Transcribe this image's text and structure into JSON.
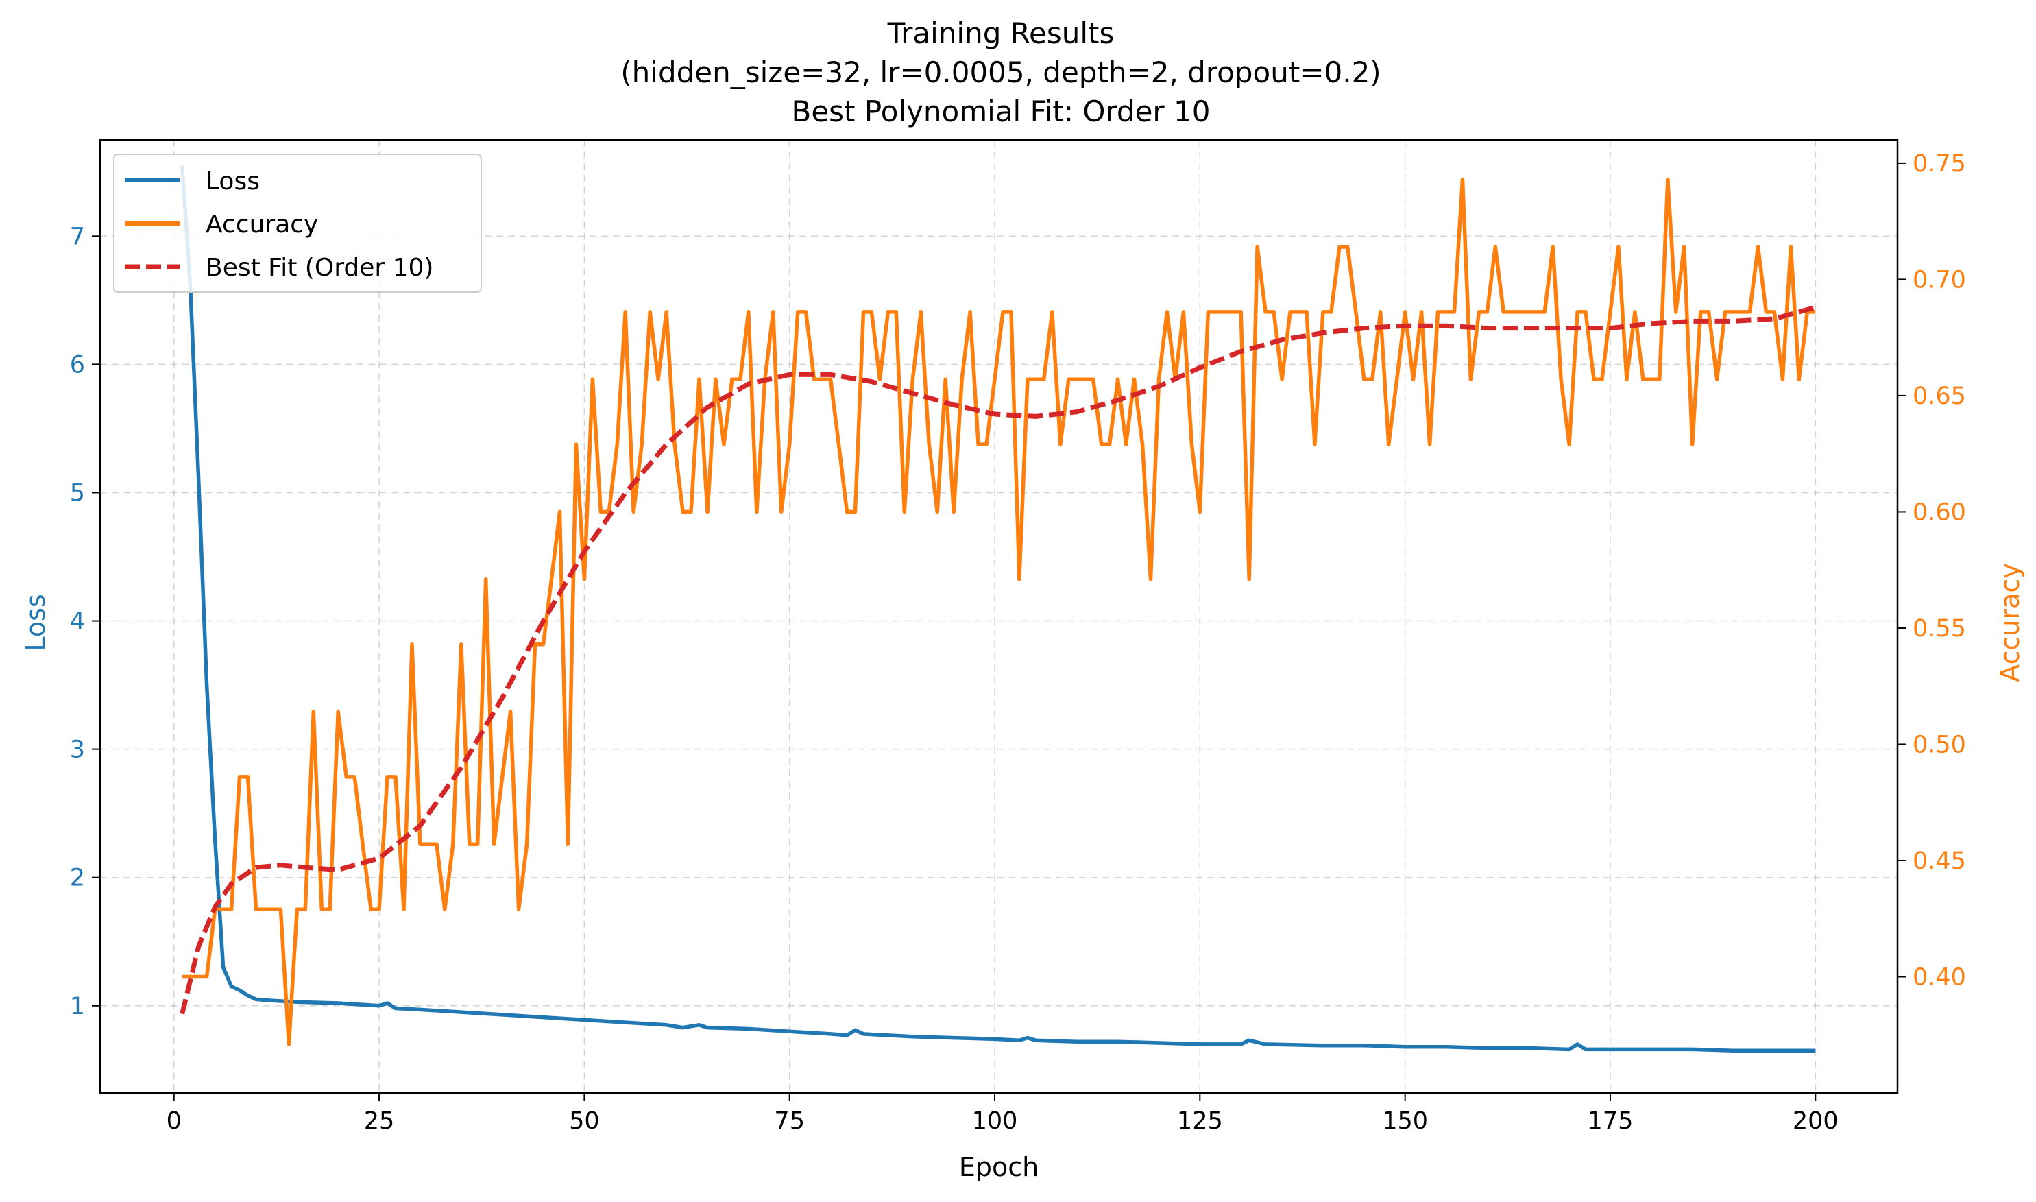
{
  "chart_data": {
    "type": "line",
    "title_lines": [
      "Training Results",
      "(hidden_size=32, lr=0.0005, depth=2, dropout=0.2)",
      "Best Polynomial Fit: Order 10"
    ],
    "xlabel": "Epoch",
    "ylabel_left": "Loss",
    "ylabel_right": "Accuracy",
    "xlim": [
      -9,
      210
    ],
    "ylim_left": [
      0.32,
      7.75
    ],
    "ylim_right": [
      0.35,
      0.76
    ],
    "xticks": [
      0,
      25,
      50,
      75,
      100,
      125,
      150,
      175,
      200
    ],
    "xtick_labels": [
      "0",
      "25",
      "50",
      "75",
      "100",
      "125",
      "150",
      "175",
      "200"
    ],
    "yticks_left": [
      1,
      2,
      3,
      4,
      5,
      6,
      7
    ],
    "ytick_labels_left": [
      "1",
      "2",
      "3",
      "4",
      "5",
      "6",
      "7"
    ],
    "yticks_right": [
      0.4,
      0.45,
      0.5,
      0.55,
      0.6,
      0.65,
      0.7,
      0.75
    ],
    "ytick_labels_right": [
      "0.40",
      "0.45",
      "0.50",
      "0.55",
      "0.60",
      "0.65",
      "0.70",
      "0.75"
    ],
    "grid": true,
    "legend_position": "upper-left",
    "colors": {
      "loss": "#1f77b4",
      "accuracy": "#ff7f0e",
      "fit": "#d62728"
    },
    "series": [
      {
        "name": "Loss",
        "axis": "left",
        "style": "solid",
        "points": [
          [
            1,
            7.55
          ],
          [
            2,
            6.6
          ],
          [
            3,
            5.1
          ],
          [
            4,
            3.5
          ],
          [
            5,
            2.3
          ],
          [
            6,
            1.3
          ],
          [
            7,
            1.15
          ],
          [
            8,
            1.12
          ],
          [
            9,
            1.08
          ],
          [
            10,
            1.05
          ],
          [
            12,
            1.04
          ],
          [
            15,
            1.03
          ],
          [
            20,
            1.02
          ],
          [
            25,
            1.0
          ],
          [
            26,
            1.02
          ],
          [
            27,
            0.98
          ],
          [
            30,
            0.97
          ],
          [
            35,
            0.95
          ],
          [
            40,
            0.93
          ],
          [
            45,
            0.91
          ],
          [
            50,
            0.89
          ],
          [
            55,
            0.87
          ],
          [
            60,
            0.85
          ],
          [
            62,
            0.83
          ],
          [
            64,
            0.85
          ],
          [
            65,
            0.83
          ],
          [
            70,
            0.82
          ],
          [
            75,
            0.8
          ],
          [
            80,
            0.78
          ],
          [
            82,
            0.77
          ],
          [
            83,
            0.81
          ],
          [
            84,
            0.78
          ],
          [
            90,
            0.76
          ],
          [
            95,
            0.75
          ],
          [
            100,
            0.74
          ],
          [
            103,
            0.73
          ],
          [
            104,
            0.75
          ],
          [
            105,
            0.73
          ],
          [
            110,
            0.72
          ],
          [
            115,
            0.72
          ],
          [
            120,
            0.71
          ],
          [
            125,
            0.7
          ],
          [
            130,
            0.7
          ],
          [
            131,
            0.73
          ],
          [
            133,
            0.7
          ],
          [
            140,
            0.69
          ],
          [
            145,
            0.69
          ],
          [
            150,
            0.68
          ],
          [
            155,
            0.68
          ],
          [
            160,
            0.67
          ],
          [
            165,
            0.67
          ],
          [
            170,
            0.66
          ],
          [
            171,
            0.7
          ],
          [
            172,
            0.66
          ],
          [
            175,
            0.66
          ],
          [
            180,
            0.66
          ],
          [
            185,
            0.66
          ],
          [
            190,
            0.65
          ],
          [
            195,
            0.65
          ],
          [
            200,
            0.65
          ]
        ]
      },
      {
        "name": "Accuracy",
        "axis": "right",
        "style": "solid",
        "points": [
          [
            1,
            0.4
          ],
          [
            2,
            0.4
          ],
          [
            3,
            0.4
          ],
          [
            4,
            0.4
          ],
          [
            5,
            0.429
          ],
          [
            6,
            0.429
          ],
          [
            7,
            0.429
          ],
          [
            8,
            0.486
          ],
          [
            9,
            0.486
          ],
          [
            10,
            0.429
          ],
          [
            11,
            0.429
          ],
          [
            12,
            0.429
          ],
          [
            13,
            0.429
          ],
          [
            14,
            0.371
          ],
          [
            15,
            0.429
          ],
          [
            16,
            0.429
          ],
          [
            17,
            0.514
          ],
          [
            18,
            0.429
          ],
          [
            19,
            0.429
          ],
          [
            20,
            0.514
          ],
          [
            21,
            0.486
          ],
          [
            22,
            0.486
          ],
          [
            23,
            0.457
          ],
          [
            24,
            0.429
          ],
          [
            25,
            0.429
          ],
          [
            26,
            0.486
          ],
          [
            27,
            0.486
          ],
          [
            28,
            0.429
          ],
          [
            29,
            0.543
          ],
          [
            30,
            0.457
          ],
          [
            31,
            0.457
          ],
          [
            32,
            0.457
          ],
          [
            33,
            0.429
          ],
          [
            34,
            0.457
          ],
          [
            35,
            0.543
          ],
          [
            36,
            0.457
          ],
          [
            37,
            0.457
          ],
          [
            38,
            0.571
          ],
          [
            39,
            0.457
          ],
          [
            40,
            0.486
          ],
          [
            41,
            0.514
          ],
          [
            42,
            0.429
          ],
          [
            43,
            0.457
          ],
          [
            44,
            0.543
          ],
          [
            45,
            0.543
          ],
          [
            46,
            0.571
          ],
          [
            47,
            0.6
          ],
          [
            48,
            0.457
          ],
          [
            49,
            0.629
          ],
          [
            50,
            0.571
          ],
          [
            51,
            0.657
          ],
          [
            52,
            0.6
          ],
          [
            53,
            0.6
          ],
          [
            54,
            0.629
          ],
          [
            55,
            0.686
          ],
          [
            56,
            0.6
          ],
          [
            57,
            0.629
          ],
          [
            58,
            0.686
          ],
          [
            59,
            0.657
          ],
          [
            60,
            0.686
          ],
          [
            61,
            0.629
          ],
          [
            62,
            0.6
          ],
          [
            63,
            0.6
          ],
          [
            64,
            0.657
          ],
          [
            65,
            0.6
          ],
          [
            66,
            0.657
          ],
          [
            67,
            0.629
          ],
          [
            68,
            0.657
          ],
          [
            69,
            0.657
          ],
          [
            70,
            0.686
          ],
          [
            71,
            0.6
          ],
          [
            72,
            0.657
          ],
          [
            73,
            0.686
          ],
          [
            74,
            0.6
          ],
          [
            75,
            0.629
          ],
          [
            76,
            0.686
          ],
          [
            77,
            0.686
          ],
          [
            78,
            0.657
          ],
          [
            79,
            0.657
          ],
          [
            80,
            0.657
          ],
          [
            81,
            0.629
          ],
          [
            82,
            0.6
          ],
          [
            83,
            0.6
          ],
          [
            84,
            0.686
          ],
          [
            85,
            0.686
          ],
          [
            86,
            0.657
          ],
          [
            87,
            0.686
          ],
          [
            88,
            0.686
          ],
          [
            89,
            0.6
          ],
          [
            90,
            0.657
          ],
          [
            91,
            0.686
          ],
          [
            92,
            0.629
          ],
          [
            93,
            0.6
          ],
          [
            94,
            0.657
          ],
          [
            95,
            0.6
          ],
          [
            96,
            0.657
          ],
          [
            97,
            0.686
          ],
          [
            98,
            0.629
          ],
          [
            99,
            0.629
          ],
          [
            100,
            0.657
          ],
          [
            101,
            0.686
          ],
          [
            102,
            0.686
          ],
          [
            103,
            0.571
          ],
          [
            104,
            0.657
          ],
          [
            105,
            0.657
          ],
          [
            106,
            0.657
          ],
          [
            107,
            0.686
          ],
          [
            108,
            0.629
          ],
          [
            109,
            0.657
          ],
          [
            110,
            0.657
          ],
          [
            111,
            0.657
          ],
          [
            112,
            0.657
          ],
          [
            113,
            0.629
          ],
          [
            114,
            0.629
          ],
          [
            115,
            0.657
          ],
          [
            116,
            0.629
          ],
          [
            117,
            0.657
          ],
          [
            118,
            0.629
          ],
          [
            119,
            0.571
          ],
          [
            120,
            0.657
          ],
          [
            121,
            0.686
          ],
          [
            122,
            0.657
          ],
          [
            123,
            0.686
          ],
          [
            124,
            0.629
          ],
          [
            125,
            0.6
          ],
          [
            126,
            0.686
          ],
          [
            127,
            0.686
          ],
          [
            128,
            0.686
          ],
          [
            129,
            0.686
          ],
          [
            130,
            0.686
          ],
          [
            131,
            0.571
          ],
          [
            132,
            0.714
          ],
          [
            133,
            0.686
          ],
          [
            134,
            0.686
          ],
          [
            135,
            0.657
          ],
          [
            136,
            0.686
          ],
          [
            137,
            0.686
          ],
          [
            138,
            0.686
          ],
          [
            139,
            0.629
          ],
          [
            140,
            0.686
          ],
          [
            141,
            0.686
          ],
          [
            142,
            0.714
          ],
          [
            143,
            0.714
          ],
          [
            144,
            0.686
          ],
          [
            145,
            0.657
          ],
          [
            146,
            0.657
          ],
          [
            147,
            0.686
          ],
          [
            148,
            0.629
          ],
          [
            149,
            0.657
          ],
          [
            150,
            0.686
          ],
          [
            151,
            0.657
          ],
          [
            152,
            0.686
          ],
          [
            153,
            0.629
          ],
          [
            154,
            0.686
          ],
          [
            155,
            0.686
          ],
          [
            156,
            0.686
          ],
          [
            157,
            0.743
          ],
          [
            158,
            0.657
          ],
          [
            159,
            0.686
          ],
          [
            160,
            0.686
          ],
          [
            161,
            0.714
          ],
          [
            162,
            0.686
          ],
          [
            163,
            0.686
          ],
          [
            164,
            0.686
          ],
          [
            165,
            0.686
          ],
          [
            166,
            0.686
          ],
          [
            167,
            0.686
          ],
          [
            168,
            0.714
          ],
          [
            169,
            0.657
          ],
          [
            170,
            0.629
          ],
          [
            171,
            0.686
          ],
          [
            172,
            0.686
          ],
          [
            173,
            0.657
          ],
          [
            174,
            0.657
          ],
          [
            175,
            0.686
          ],
          [
            176,
            0.714
          ],
          [
            177,
            0.657
          ],
          [
            178,
            0.686
          ],
          [
            179,
            0.657
          ],
          [
            180,
            0.657
          ],
          [
            181,
            0.657
          ],
          [
            182,
            0.743
          ],
          [
            183,
            0.686
          ],
          [
            184,
            0.714
          ],
          [
            185,
            0.629
          ],
          [
            186,
            0.686
          ],
          [
            187,
            0.686
          ],
          [
            188,
            0.657
          ],
          [
            189,
            0.686
          ],
          [
            190,
            0.686
          ],
          [
            191,
            0.686
          ],
          [
            192,
            0.686
          ],
          [
            193,
            0.714
          ],
          [
            194,
            0.686
          ],
          [
            195,
            0.686
          ],
          [
            196,
            0.657
          ],
          [
            197,
            0.714
          ],
          [
            198,
            0.657
          ],
          [
            199,
            0.686
          ],
          [
            200,
            0.686
          ]
        ]
      },
      {
        "name": "Best Fit (Order 10)",
        "axis": "right",
        "style": "dashed",
        "points": [
          [
            1,
            0.384
          ],
          [
            3,
            0.413
          ],
          [
            5,
            0.43
          ],
          [
            7,
            0.44
          ],
          [
            10,
            0.447
          ],
          [
            13,
            0.448
          ],
          [
            16,
            0.447
          ],
          [
            20,
            0.446
          ],
          [
            25,
            0.451
          ],
          [
            30,
            0.465
          ],
          [
            35,
            0.49
          ],
          [
            40,
            0.52
          ],
          [
            45,
            0.553
          ],
          [
            50,
            0.583
          ],
          [
            55,
            0.608
          ],
          [
            60,
            0.629
          ],
          [
            65,
            0.645
          ],
          [
            70,
            0.655
          ],
          [
            75,
            0.659
          ],
          [
            80,
            0.659
          ],
          [
            85,
            0.656
          ],
          [
            90,
            0.651
          ],
          [
            95,
            0.646
          ],
          [
            100,
            0.642
          ],
          [
            105,
            0.641
          ],
          [
            110,
            0.643
          ],
          [
            115,
            0.648
          ],
          [
            120,
            0.654
          ],
          [
            125,
            0.662
          ],
          [
            130,
            0.669
          ],
          [
            135,
            0.674
          ],
          [
            140,
            0.677
          ],
          [
            145,
            0.679
          ],
          [
            150,
            0.68
          ],
          [
            155,
            0.68
          ],
          [
            160,
            0.679
          ],
          [
            165,
            0.679
          ],
          [
            170,
            0.679
          ],
          [
            175,
            0.679
          ],
          [
            180,
            0.681
          ],
          [
            185,
            0.682
          ],
          [
            190,
            0.682
          ],
          [
            195,
            0.683
          ],
          [
            200,
            0.688
          ]
        ]
      }
    ]
  }
}
